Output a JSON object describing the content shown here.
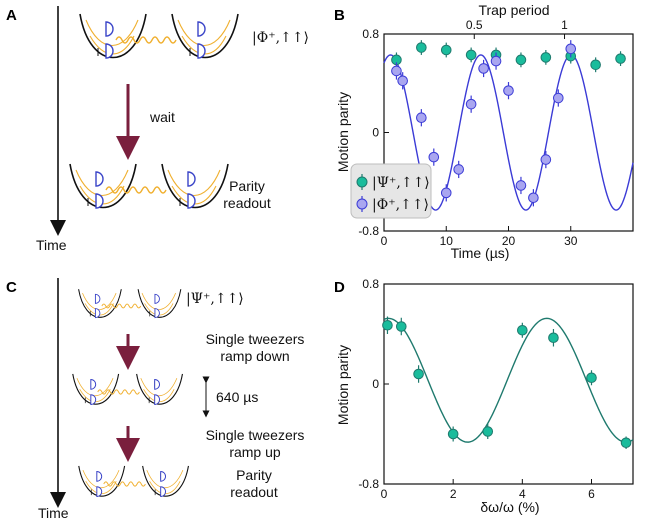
{
  "panels": {
    "A": "A",
    "B": "B",
    "C": "C",
    "D": "D"
  },
  "diagram_A": {
    "state_label": "|Φ⁺,↑↑⟩",
    "step_label": "wait",
    "readout_line1": "Parity",
    "readout_line2": "readout",
    "time_label": "Time"
  },
  "diagram_C": {
    "state_label": "|Ψ⁺,↑↑⟩",
    "ramp_down_line1": "Single tweezers",
    "ramp_down_line2": "ramp down",
    "hold_label": "640 µs",
    "ramp_up_line1": "Single tweezers",
    "ramp_up_line2": "ramp up",
    "readout_line1": "Parity",
    "readout_line2": "readout",
    "time_label": "Time"
  },
  "colors": {
    "teal": "#1abc9c",
    "teal_fit": "#1f7a6e",
    "lavender": "#a9a6f0",
    "blue_fit": "#3b3bd6",
    "arrow": "#7a1f3d",
    "spring": "#f0b030",
    "atom": "#3a44c8"
  },
  "chart_data": [
    {
      "panel": "B",
      "type": "scatter",
      "xlabel": "Time (µs)",
      "ylabel": "Motion parity",
      "top_xlabel": "Trap period",
      "xlim": [
        0,
        40
      ],
      "ylim": [
        -0.8,
        0.8
      ],
      "xticks": [
        0,
        10,
        20,
        30
      ],
      "yticks": [
        -0.8,
        0,
        0.8
      ],
      "yticklabels": [
        "-0.8",
        "0",
        "0.8"
      ],
      "top_xticks": [
        0.5,
        1
      ],
      "top_xtick_positions": [
        14.5,
        29.0
      ],
      "legend_position": "lower-left",
      "series": [
        {
          "name": "|Ψ⁺,↑↑⟩",
          "color": "#1abc9c",
          "x": [
            2,
            6,
            10,
            14,
            18,
            22,
            26,
            30,
            34,
            38
          ],
          "y": [
            0.59,
            0.69,
            0.67,
            0.63,
            0.63,
            0.59,
            0.61,
            0.62,
            0.55,
            0.6
          ],
          "err": [
            0.06,
            0.06,
            0.06,
            0.06,
            0.06,
            0.06,
            0.06,
            0.06,
            0.06,
            0.06
          ]
        },
        {
          "name": "|Φ⁺,↑↑⟩",
          "color": "#a9a6f0",
          "x": [
            2,
            3,
            6,
            8,
            10,
            12,
            14,
            16,
            18,
            20,
            22,
            24,
            26,
            28,
            30
          ],
          "y": [
            0.5,
            0.42,
            0.12,
            -0.2,
            -0.49,
            -0.3,
            0.23,
            0.52,
            0.58,
            0.34,
            -0.43,
            -0.53,
            -0.22,
            0.28,
            0.68
          ],
          "err": [
            0.07,
            0.07,
            0.07,
            0.07,
            0.07,
            0.07,
            0.07,
            0.07,
            0.07,
            0.07,
            0.07,
            0.07,
            0.07,
            0.07,
            0.07
          ]
        }
      ],
      "fit": {
        "color": "#3b3bd6",
        "amplitude": 0.63,
        "period": 14.5,
        "phase_deg": -26,
        "offset": 0.0
      }
    },
    {
      "panel": "D",
      "type": "scatter",
      "xlabel": "δω/ω (%)",
      "ylabel": "Motion parity",
      "xlim": [
        0,
        7.2
      ],
      "ylim": [
        -0.8,
        0.8
      ],
      "xticks": [
        0,
        2,
        4,
        6
      ],
      "yticks": [
        -0.8,
        0,
        0.8
      ],
      "yticklabels": [
        "-0.8",
        "0",
        "0.8"
      ],
      "series": [
        {
          "name": "",
          "color": "#1abc9c",
          "x": [
            0.1,
            0.5,
            1.0,
            2.0,
            3.0,
            4.0,
            4.9,
            6.0,
            7.0
          ],
          "y": [
            0.47,
            0.46,
            0.08,
            -0.4,
            -0.38,
            0.43,
            0.37,
            0.05,
            -0.47
          ],
          "err": [
            0.07,
            0.07,
            0.07,
            0.06,
            0.06,
            0.06,
            0.07,
            0.06,
            0.05
          ]
        }
      ],
      "fit": {
        "color": "#1f7a6e",
        "amplitude": 0.495,
        "period": 4.58,
        "phase_deg": -10,
        "offset": 0.03
      }
    }
  ]
}
